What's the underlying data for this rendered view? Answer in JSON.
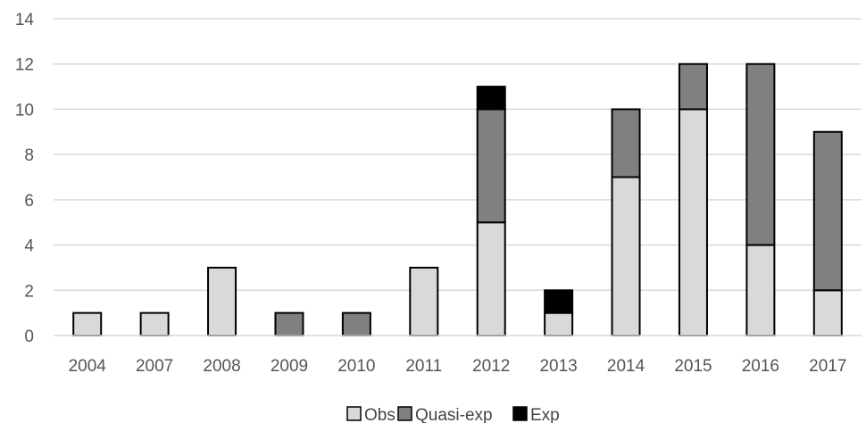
{
  "chart_data": {
    "type": "bar",
    "stacked": true,
    "title": "",
    "xlabel": "",
    "ylabel": "",
    "categories": [
      "2004",
      "2007",
      "2008",
      "2009",
      "2010",
      "2011",
      "2012",
      "2013",
      "2014",
      "2015",
      "2016",
      "2017"
    ],
    "series": [
      {
        "name": "Obs",
        "color": "#d9d9d9",
        "values": [
          1,
          1,
          3,
          0,
          0,
          3,
          5,
          1,
          7,
          10,
          4,
          2
        ]
      },
      {
        "name": "Quasi-exp",
        "color": "#808080",
        "values": [
          0,
          0,
          0,
          1,
          1,
          0,
          5,
          0,
          3,
          2,
          8,
          7
        ]
      },
      {
        "name": "Exp",
        "color": "#000000",
        "values": [
          0,
          0,
          0,
          0,
          0,
          0,
          1,
          1,
          0,
          0,
          0,
          0
        ]
      }
    ],
    "ylim": [
      0,
      14
    ],
    "yticks": [
      "0",
      "2",
      "4",
      "6",
      "8",
      "10",
      "12",
      "14"
    ],
    "grid": true,
    "legend_position": "bottom"
  }
}
